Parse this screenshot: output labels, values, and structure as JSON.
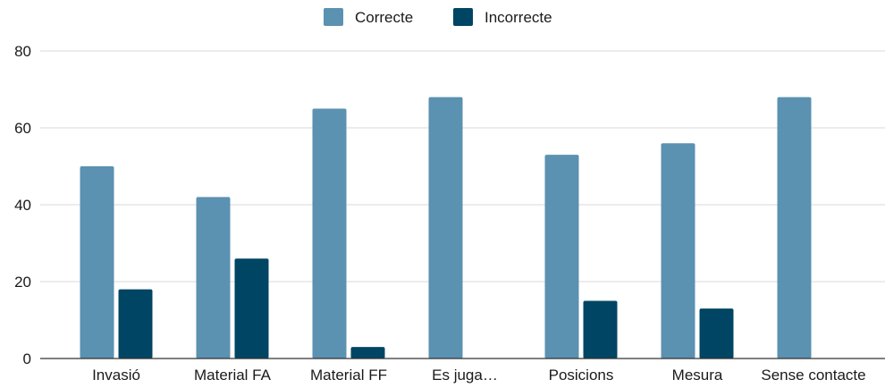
{
  "chart_data": {
    "type": "bar",
    "categories": [
      "Invasió",
      "Material FA",
      "Material FF",
      "Es juga…",
      "Posicions",
      "Mesura",
      "Sense contacte"
    ],
    "series": [
      {
        "name": "Correcte",
        "color": "#5b91b1",
        "values": [
          50,
          42,
          65,
          68,
          53,
          56,
          68
        ]
      },
      {
        "name": "Incorrecte",
        "color": "#004563",
        "values": [
          18,
          26,
          3,
          0,
          15,
          13,
          0
        ]
      }
    ],
    "ylim": [
      0,
      80
    ],
    "yticks": [
      0,
      20,
      40,
      60,
      80
    ],
    "grid": true,
    "legend": "top-center"
  }
}
